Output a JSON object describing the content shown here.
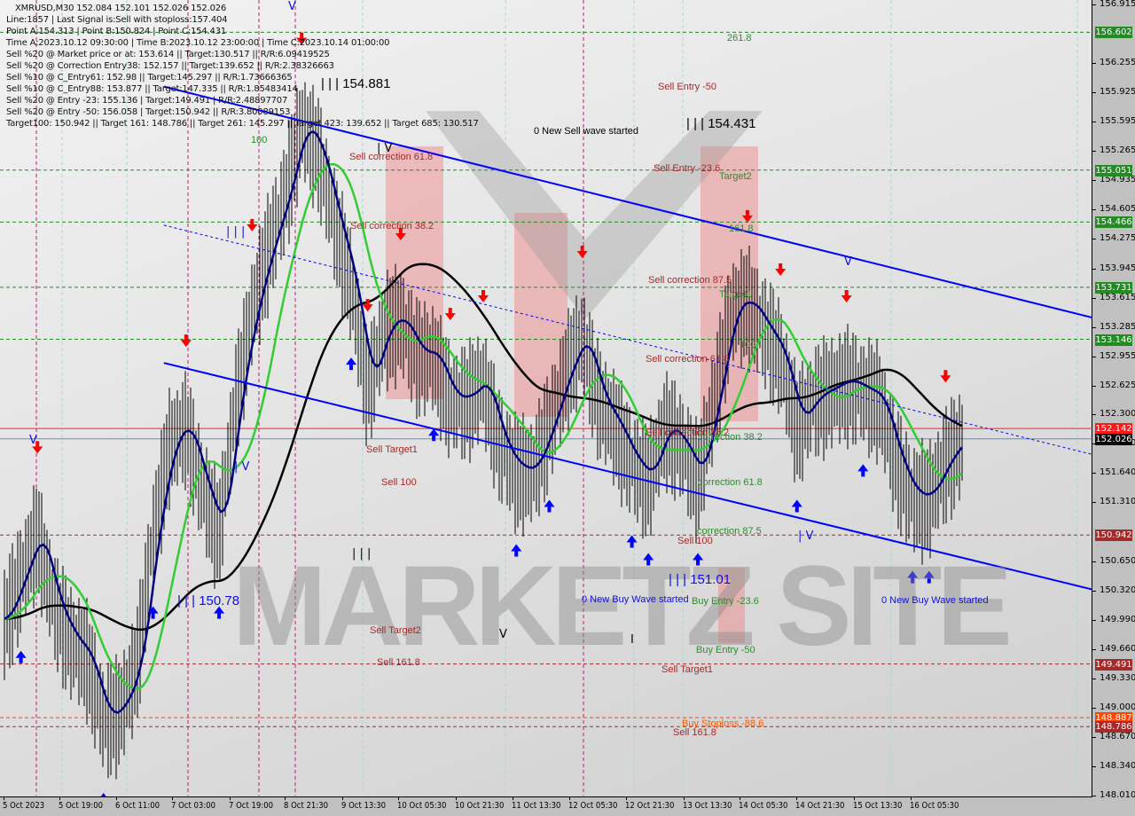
{
  "header": {
    "symbol_line": "XMRUSD,M30  152.084 152.101 152.026 152.026",
    "lines": [
      "Line:1857 | Last Signal is:Sell with stoploss:157.404",
      "Point A:154.313 | Point B:150.824 | Point C:154.431",
      "Time A:2023.10.12 09:30:00 | Time B:2023.10.12 23:00:00 | Time C:2023.10.14 01:00:00",
      "Sell %20 @ Market price or at: 153.614 || Target:130.517 || R/R:6.09419525",
      "Sell %20 @ Correction Entry38: 152.157 || Target:139.652 || R/R:2.38326663",
      "Sell %10 @ C_Entry61: 152.98 || Target:145.297 || R/R:1.73666365",
      "Sell %10 @ C_Entry88: 153.877 || Target:147.335 || R/R:1.85483414",
      "Sell %20 @ Entry -23: 155.136 | Target:149.491 | R/R:2.48897707",
      "Sell %20 @ Entry -50: 156.058 | Target:150.942 || R/R:3.80089153",
      "Target100: 150.942 || Target 161: 148.786 || Target 261: 145.297 || Target 423: 139.652 || Target 685: 130.517"
    ]
  },
  "watermark": "MARKETZ SITE",
  "chart_data": {
    "type": "bar",
    "symbol": "XMRUSD",
    "timeframe": "M30",
    "ylim": [
      148.01,
      156.915
    ],
    "y_ticks": [
      "156.915",
      "156.255",
      "155.925",
      "155.595",
      "155.265",
      "154.935",
      "154.605",
      "154.275",
      "153.945",
      "153.615",
      "153.285",
      "152.955",
      "152.625",
      "152.300",
      "151.970",
      "151.640",
      "151.310",
      "150.650",
      "150.320",
      "149.990",
      "149.660",
      "149.330",
      "149.000",
      "148.670",
      "148.340",
      "148.010"
    ],
    "x_ticks": [
      "5 Oct 2023",
      "5 Oct 19:00",
      "6 Oct 11:00",
      "7 Oct 03:00",
      "7 Oct 19:00",
      "8 Oct 21:30",
      "9 Oct 13:30",
      "10 Oct 05:30",
      "10 Oct 21:30",
      "11 Oct 13:30",
      "12 Oct 05:30",
      "12 Oct 21:30",
      "13 Oct 13:30",
      "14 Oct 05:30",
      "14 Oct 21:30",
      "15 Oct 13:30",
      "16 Oct 05:30"
    ],
    "price_path": [
      150.0,
      150.5,
      151.0,
      150.2,
      149.8,
      149.6,
      148.9,
      149.0,
      149.5,
      151.0,
      152.0,
      152.2,
      151.5,
      151.0,
      152.5,
      153.5,
      154.2,
      154.8,
      155.6,
      155.3,
      154.5,
      153.8,
      152.6,
      153.3,
      153.4,
      153.0,
      153.0,
      152.5,
      152.5,
      152.7,
      152.0,
      151.7,
      151.7,
      152.2,
      152.8,
      153.2,
      152.5,
      152.2,
      151.8,
      151.6,
      152.2,
      152.0,
      151.6,
      152.5,
      153.5,
      153.6,
      153.3,
      153.0,
      152.2,
      152.5,
      152.6,
      152.7,
      152.6,
      152.5,
      151.8,
      151.4,
      151.4,
      151.8,
      152.03
    ],
    "level_lines": [
      {
        "price": 156.602,
        "label": "156.602",
        "color": "#228b22",
        "style": "dashed"
      },
      {
        "price": 155.051,
        "label": "155.051",
        "color": "#228b22",
        "style": "dashed"
      },
      {
        "price": 154.466,
        "label": "154.466",
        "color": "#228b22",
        "style": "dashed"
      },
      {
        "price": 153.731,
        "label": "153.731",
        "color": "#228b22",
        "style": "dashed"
      },
      {
        "price": 153.146,
        "label": "153.146",
        "color": "#228b22",
        "style": "dashed"
      },
      {
        "price": 152.142,
        "label": "152.142",
        "color": "#ff2020",
        "style": "solid"
      },
      {
        "price": 152.026,
        "label": "152.026",
        "color": "#000000",
        "style": "solid"
      },
      {
        "price": 150.942,
        "label": "150.942",
        "color": "#a52a2a",
        "style": "dashed"
      },
      {
        "price": 149.491,
        "label": "149.491",
        "color": "#a52a2a",
        "style": "dashed"
      },
      {
        "price": 148.887,
        "label": "148.887",
        "color": "#ff4500",
        "style": "dashed"
      },
      {
        "price": 148.786,
        "label": "148.786",
        "color": "#a52a2a",
        "style": "dashed"
      }
    ],
    "trend_lines": [
      {
        "name": "upper-channel",
        "from": [
          0.15,
          155.99
        ],
        "to": [
          1.0,
          153.39
        ],
        "color": "#0000ff",
        "style": "solid"
      },
      {
        "name": "middle-channel",
        "from": [
          0.15,
          154.43
        ],
        "to": [
          1.0,
          151.85
        ],
        "color": "#0000ff",
        "style": "dotted"
      },
      {
        "name": "lower-channel",
        "from": [
          0.15,
          152.88
        ],
        "to": [
          1.0,
          150.33
        ],
        "color": "#0000ff",
        "style": "solid"
      }
    ],
    "signals": [
      {
        "i": 18,
        "type": "sell"
      },
      {
        "i": 15,
        "type": "sell"
      },
      {
        "i": 22,
        "type": "sell"
      },
      {
        "i": 24,
        "type": "sell"
      },
      {
        "i": 27,
        "type": "sell"
      },
      {
        "i": 29,
        "type": "sell"
      },
      {
        "i": 35,
        "type": "sell"
      },
      {
        "i": 45,
        "type": "sell"
      },
      {
        "i": 47,
        "type": "sell"
      },
      {
        "i": 51,
        "type": "sell"
      },
      {
        "i": 57,
        "type": "sell"
      },
      {
        "i": 2,
        "type": "sell"
      },
      {
        "i": 11,
        "type": "sell"
      },
      {
        "i": 6,
        "type": "buy"
      },
      {
        "i": 9,
        "type": "buy"
      },
      {
        "i": 13,
        "type": "buy"
      },
      {
        "i": 21,
        "type": "buy"
      },
      {
        "i": 26,
        "type": "buy"
      },
      {
        "i": 31,
        "type": "buy"
      },
      {
        "i": 33,
        "type": "buy"
      },
      {
        "i": 38,
        "type": "buy"
      },
      {
        "i": 39,
        "type": "buy"
      },
      {
        "i": 42,
        "type": "buy"
      },
      {
        "i": 48,
        "type": "buy"
      },
      {
        "i": 52,
        "type": "buy"
      },
      {
        "i": 55,
        "type": "buy"
      },
      {
        "i": 56,
        "type": "buy"
      },
      {
        "i": 1,
        "type": "buy"
      }
    ],
    "colors": {
      "fast_ma": "#000080",
      "mid_ma": "#32cd32",
      "slow_ma": "#000000",
      "channel": "#0000ff",
      "sell_arrow": "#ff0000",
      "buy_arrow": "#0000ff",
      "zone": "#f08080"
    }
  },
  "annotations": {
    "a261": "261.8",
    "sell_entry_50": "Sell Entry -50",
    "p154881": "| | | 154.881",
    "p154431": "| | | 154.431",
    "new_sell": "0 New Sell wave started",
    "g100a": "100",
    "sell_corr_618a": "Sell correction 61.8",
    "sell_entry_236": "Sell Entry -23.6",
    "target2": "Target2",
    "sell_corr_382a": "Sell correction 38.2",
    "g1618": "161.8",
    "sell_corr_875": "Sell correction 87.5",
    "target1": "Target1",
    "g100b": "100",
    "sell_corr_618b": "Sell correction 61.8",
    "sell_corr_382b": "Sell correction 38.2",
    "corr_382": "correction 38.2",
    "sell_target1a": "Sell Target1",
    "sell_100a": "Sell 100",
    "corr_618": "correction 61.8",
    "corr_875": "correction 87.5",
    "sell_100b": "Sell 100",
    "p15101": "| | | 151.01",
    "p15078": "| | | 150.78",
    "new_buy_a": "0 New Buy Wave started",
    "buy_entry_236": "Buy Entry -23.6",
    "new_buy_b": "0 New Buy Wave started",
    "sell_target2": "Sell Target2",
    "buy_entry_50": "Buy Entry -50",
    "sell_1618a": "Sell 161.8",
    "sell_target1b": "Sell Target1",
    "buy_stoploss": "Buy Stoploss -88.6",
    "sell_1618b": "Sell 161.8"
  },
  "wave_marks": {
    "w1": "V",
    "w2": "| V",
    "w3": "| | |",
    "w4": "| V",
    "w5": "| | |",
    "w6": "V",
    "w7": "| V",
    "w8": "V",
    "w9": "V",
    "w10": "I"
  }
}
